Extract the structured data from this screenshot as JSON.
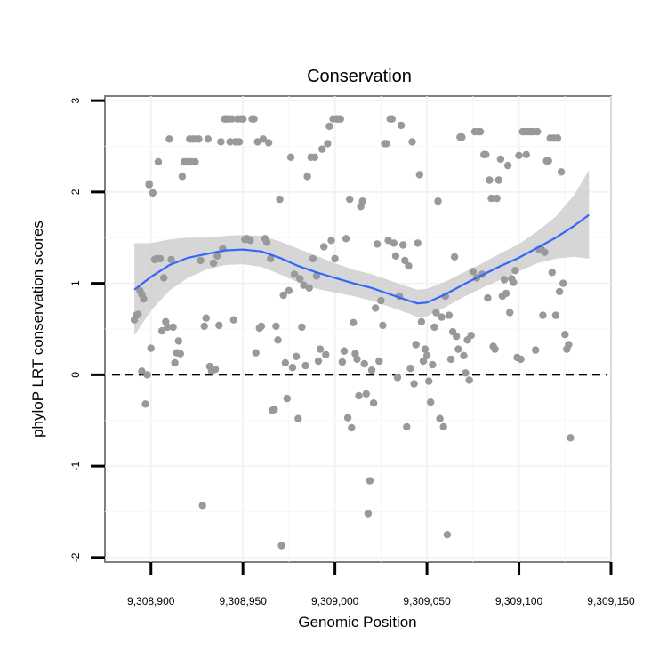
{
  "chart_data": {
    "type": "scatter",
    "title": "Conservation",
    "xlabel": "Genomic Position",
    "ylabel": "phyloP LRT conservation scores",
    "xlim": [
      9308875,
      9309150
    ],
    "ylim": [
      -2.05,
      3.05
    ],
    "x_ticks": [
      9308900,
      9308950,
      9309000,
      9309050,
      9309100,
      9309150
    ],
    "x_tick_labels": [
      "9,308,900",
      "9,308,950",
      "9,309,000",
      "9,309,050",
      "9,309,100",
      "9,309,150"
    ],
    "y_ticks": [
      -2,
      -1,
      0,
      1,
      2,
      3
    ],
    "y_tick_labels": [
      "-2",
      "-1",
      "0",
      "1",
      "2",
      "3"
    ],
    "grid": true,
    "reference_line": {
      "y": 0,
      "style": "dashed"
    },
    "point_color": "#999999",
    "smooth_color": "#3366ff",
    "band_color": "#cccccc",
    "points": [
      [
        9308891,
        0.6
      ],
      [
        9308892,
        0.65
      ],
      [
        9308893,
        0.66
      ],
      [
        9308894,
        0.92
      ],
      [
        9308895,
        0.88
      ],
      [
        9308896,
        0.83
      ],
      [
        9308895,
        0.04
      ],
      [
        9308897,
        -0.32
      ],
      [
        9308898,
        0.0
      ],
      [
        9308899,
        2.09
      ],
      [
        9308899,
        2.08
      ],
      [
        9308900,
        0.29
      ],
      [
        9308901,
        1.99
      ],
      [
        9308902,
        1.26
      ],
      [
        9308903,
        1.27
      ],
      [
        9308904,
        2.33
      ],
      [
        9308905,
        1.27
      ],
      [
        9308906,
        0.48
      ],
      [
        9308907,
        1.06
      ],
      [
        9308908,
        0.58
      ],
      [
        9308909,
        0.52
      ],
      [
        9308910,
        2.58
      ],
      [
        9308911,
        1.26
      ],
      [
        9308912,
        0.52
      ],
      [
        9308913,
        0.13
      ],
      [
        9308914,
        0.24
      ],
      [
        9308915,
        0.37
      ],
      [
        9308916,
        0.23
      ],
      [
        9308917,
        2.17
      ],
      [
        9308918,
        2.33
      ],
      [
        9308919,
        2.33
      ],
      [
        9308920,
        2.33
      ],
      [
        9308921,
        2.58
      ],
      [
        9308922,
        2.33
      ],
      [
        9308923,
        2.58
      ],
      [
        9308924,
        2.33
      ],
      [
        9308925,
        2.58
      ],
      [
        9308926,
        2.58
      ],
      [
        9308927,
        1.25
      ],
      [
        9308928,
        -1.43
      ],
      [
        9308929,
        0.53
      ],
      [
        9308930,
        0.62
      ],
      [
        9308931,
        2.58
      ],
      [
        9308932,
        0.09
      ],
      [
        9308933,
        0.04
      ],
      [
        9308934,
        1.22
      ],
      [
        9308935,
        0.06
      ],
      [
        9308936,
        1.3
      ],
      [
        9308937,
        0.54
      ],
      [
        9308938,
        2.55
      ],
      [
        9308939,
        1.38
      ],
      [
        9308940,
        2.8
      ],
      [
        9308941,
        2.8
      ],
      [
        9308942,
        2.8
      ],
      [
        9308943,
        2.55
      ],
      [
        9308944,
        2.8
      ],
      [
        9308945,
        0.6
      ],
      [
        9308946,
        2.55
      ],
      [
        9308947,
        2.8
      ],
      [
        9308948,
        2.55
      ],
      [
        9308949,
        2.8
      ],
      [
        9308950,
        2.8
      ],
      [
        9308951,
        1.48
      ],
      [
        9308952,
        1.49
      ],
      [
        9308953,
        1.48
      ],
      [
        9308954,
        1.47
      ],
      [
        9308955,
        2.8
      ],
      [
        9308956,
        2.8
      ],
      [
        9308957,
        0.24
      ],
      [
        9308958,
        2.55
      ],
      [
        9308959,
        0.51
      ],
      [
        9308960,
        0.53
      ],
      [
        9308961,
        2.58
      ],
      [
        9308962,
        1.49
      ],
      [
        9308963,
        1.45
      ],
      [
        9308964,
        2.54
      ],
      [
        9308965,
        1.27
      ],
      [
        9308966,
        -0.39
      ],
      [
        9308967,
        -0.38
      ],
      [
        9308968,
        0.53
      ],
      [
        9308969,
        0.38
      ],
      [
        9308970,
        1.92
      ],
      [
        9308971,
        -1.87
      ],
      [
        9308972,
        0.87
      ],
      [
        9308973,
        0.13
      ],
      [
        9308974,
        -0.26
      ],
      [
        9308975,
        0.92
      ],
      [
        9308976,
        2.38
      ],
      [
        9308977,
        0.08
      ],
      [
        9308978,
        1.1
      ],
      [
        9308979,
        0.2
      ],
      [
        9308980,
        -0.48
      ],
      [
        9308981,
        1.05
      ],
      [
        9308982,
        0.52
      ],
      [
        9308983,
        0.98
      ],
      [
        9308984,
        0.1
      ],
      [
        9308985,
        2.17
      ],
      [
        9308986,
        0.95
      ],
      [
        9308987,
        2.38
      ],
      [
        9308988,
        1.27
      ],
      [
        9308989,
        2.38
      ],
      [
        9308990,
        1.08
      ],
      [
        9308991,
        0.15
      ],
      [
        9308992,
        0.28
      ],
      [
        9308993,
        2.47
      ],
      [
        9308994,
        1.4
      ],
      [
        9308995,
        0.22
      ],
      [
        9308996,
        2.53
      ],
      [
        9308997,
        2.72
      ],
      [
        9308998,
        1.47
      ],
      [
        9308999,
        2.8
      ],
      [
        9309000,
        1.27
      ],
      [
        9309001,
        2.8
      ],
      [
        9309002,
        2.8
      ],
      [
        9309003,
        2.8
      ],
      [
        9309004,
        0.14
      ],
      [
        9309005,
        0.26
      ],
      [
        9309006,
        1.49
      ],
      [
        9309007,
        -0.47
      ],
      [
        9309008,
        1.92
      ],
      [
        9309009,
        -0.58
      ],
      [
        9309010,
        0.57
      ],
      [
        9309011,
        0.23
      ],
      [
        9309012,
        0.17
      ],
      [
        9309013,
        -0.23
      ],
      [
        9309014,
        1.84
      ],
      [
        9309015,
        1.9
      ],
      [
        9309016,
        0.12
      ],
      [
        9309017,
        -0.21
      ],
      [
        9309018,
        -1.52
      ],
      [
        9309019,
        -1.16
      ],
      [
        9309020,
        0.05
      ],
      [
        9309021,
        -0.31
      ],
      [
        9309022,
        0.73
      ],
      [
        9309023,
        1.43
      ],
      [
        9309024,
        0.15
      ],
      [
        9309025,
        0.81
      ],
      [
        9309026,
        0.54
      ],
      [
        9309027,
        2.53
      ],
      [
        9309028,
        2.53
      ],
      [
        9309029,
        1.47
      ],
      [
        9309030,
        2.8
      ],
      [
        9309031,
        2.8
      ],
      [
        9309032,
        1.44
      ],
      [
        9309033,
        1.3
      ],
      [
        9309034,
        -0.03
      ],
      [
        9309035,
        0.86
      ],
      [
        9309036,
        2.73
      ],
      [
        9309037,
        1.42
      ],
      [
        9309038,
        1.25
      ],
      [
        9309039,
        -0.57
      ],
      [
        9309040,
        1.19
      ],
      [
        9309041,
        0.07
      ],
      [
        9309042,
        2.55
      ],
      [
        9309043,
        -0.1
      ],
      [
        9309044,
        0.33
      ],
      [
        9309045,
        1.44
      ],
      [
        9309046,
        2.19
      ],
      [
        9309047,
        0.58
      ],
      [
        9309048,
        0.15
      ],
      [
        9309049,
        0.28
      ],
      [
        9309050,
        0.21
      ],
      [
        9309051,
        -0.07
      ],
      [
        9309052,
        -0.3
      ],
      [
        9309053,
        0.11
      ],
      [
        9309054,
        0.52
      ],
      [
        9309055,
        0.68
      ],
      [
        9309056,
        1.9
      ],
      [
        9309057,
        -0.48
      ],
      [
        9309058,
        0.63
      ],
      [
        9309059,
        -0.57
      ],
      [
        9309060,
        0.86
      ],
      [
        9309061,
        -1.75
      ],
      [
        9309062,
        0.65
      ],
      [
        9309063,
        0.17
      ],
      [
        9309064,
        0.47
      ],
      [
        9309065,
        1.29
      ],
      [
        9309066,
        0.42
      ],
      [
        9309067,
        0.28
      ],
      [
        9309068,
        2.6
      ],
      [
        9309069,
        2.6
      ],
      [
        9309070,
        0.21
      ],
      [
        9309071,
        0.02
      ],
      [
        9309072,
        0.38
      ],
      [
        9309073,
        -0.06
      ],
      [
        9309074,
        0.43
      ],
      [
        9309075,
        1.13
      ],
      [
        9309076,
        2.66
      ],
      [
        9309077,
        1.06
      ],
      [
        9309078,
        2.66
      ],
      [
        9309079,
        2.66
      ],
      [
        9309080,
        1.1
      ],
      [
        9309081,
        2.41
      ],
      [
        9309082,
        2.41
      ],
      [
        9309083,
        0.84
      ],
      [
        9309084,
        2.13
      ],
      [
        9309085,
        1.93
      ],
      [
        9309086,
        0.31
      ],
      [
        9309087,
        0.28
      ],
      [
        9309088,
        1.93
      ],
      [
        9309089,
        2.13
      ],
      [
        9309090,
        2.36
      ],
      [
        9309091,
        0.86
      ],
      [
        9309092,
        1.04
      ],
      [
        9309093,
        0.89
      ],
      [
        9309094,
        2.29
      ],
      [
        9309095,
        0.68
      ],
      [
        9309096,
        1.05
      ],
      [
        9309097,
        1.01
      ],
      [
        9309098,
        1.14
      ],
      [
        9309099,
        0.19
      ],
      [
        9309100,
        2.4
      ],
      [
        9309101,
        0.17
      ],
      [
        9309102,
        2.66
      ],
      [
        9309103,
        2.66
      ],
      [
        9309104,
        2.41
      ],
      [
        9309105,
        2.66
      ],
      [
        9309106,
        2.66
      ],
      [
        9309107,
        2.66
      ],
      [
        9309108,
        2.66
      ],
      [
        9309109,
        0.27
      ],
      [
        9309110,
        2.66
      ],
      [
        9309111,
        1.37
      ],
      [
        9309112,
        1.38
      ],
      [
        9309113,
        0.65
      ],
      [
        9309114,
        1.34
      ],
      [
        9309115,
        2.34
      ],
      [
        9309116,
        2.34
      ],
      [
        9309117,
        2.59
      ],
      [
        9309118,
        1.12
      ],
      [
        9309119,
        2.59
      ],
      [
        9309120,
        0.65
      ],
      [
        9309121,
        2.59
      ],
      [
        9309122,
        0.91
      ],
      [
        9309123,
        2.22
      ],
      [
        9309124,
        1.0
      ],
      [
        9309125,
        0.44
      ],
      [
        9309126,
        0.28
      ],
      [
        9309127,
        0.33
      ],
      [
        9309128,
        -0.69
      ]
    ],
    "smooth_fit": {
      "x": [
        9308891,
        9308900,
        9308910,
        9308920,
        9308930,
        9308940,
        9308950,
        9308960,
        9308970,
        9308980,
        9308990,
        9309000,
        9309010,
        9309020,
        9309030,
        9309040,
        9309045,
        9309050,
        9309060,
        9309070,
        9309080,
        9309090,
        9309100,
        9309110,
        9309120,
        9309130,
        9309138
      ],
      "y": [
        0.93,
        1.07,
        1.2,
        1.28,
        1.32,
        1.36,
        1.37,
        1.35,
        1.28,
        1.19,
        1.12,
        1.06,
        1.0,
        0.95,
        0.88,
        0.81,
        0.78,
        0.79,
        0.88,
        0.99,
        1.09,
        1.19,
        1.28,
        1.39,
        1.5,
        1.63,
        1.75
      ],
      "upper": [
        1.44,
        1.44,
        1.48,
        1.5,
        1.5,
        1.52,
        1.53,
        1.52,
        1.46,
        1.38,
        1.3,
        1.22,
        1.15,
        1.1,
        1.03,
        0.96,
        0.93,
        0.94,
        1.02,
        1.12,
        1.22,
        1.33,
        1.43,
        1.57,
        1.73,
        1.97,
        2.24
      ],
      "lower": [
        0.43,
        0.7,
        0.92,
        1.06,
        1.15,
        1.2,
        1.21,
        1.18,
        1.1,
        1.01,
        0.94,
        0.9,
        0.86,
        0.81,
        0.74,
        0.67,
        0.63,
        0.64,
        0.74,
        0.85,
        0.95,
        1.04,
        1.13,
        1.22,
        1.27,
        1.29,
        1.27
      ]
    }
  }
}
